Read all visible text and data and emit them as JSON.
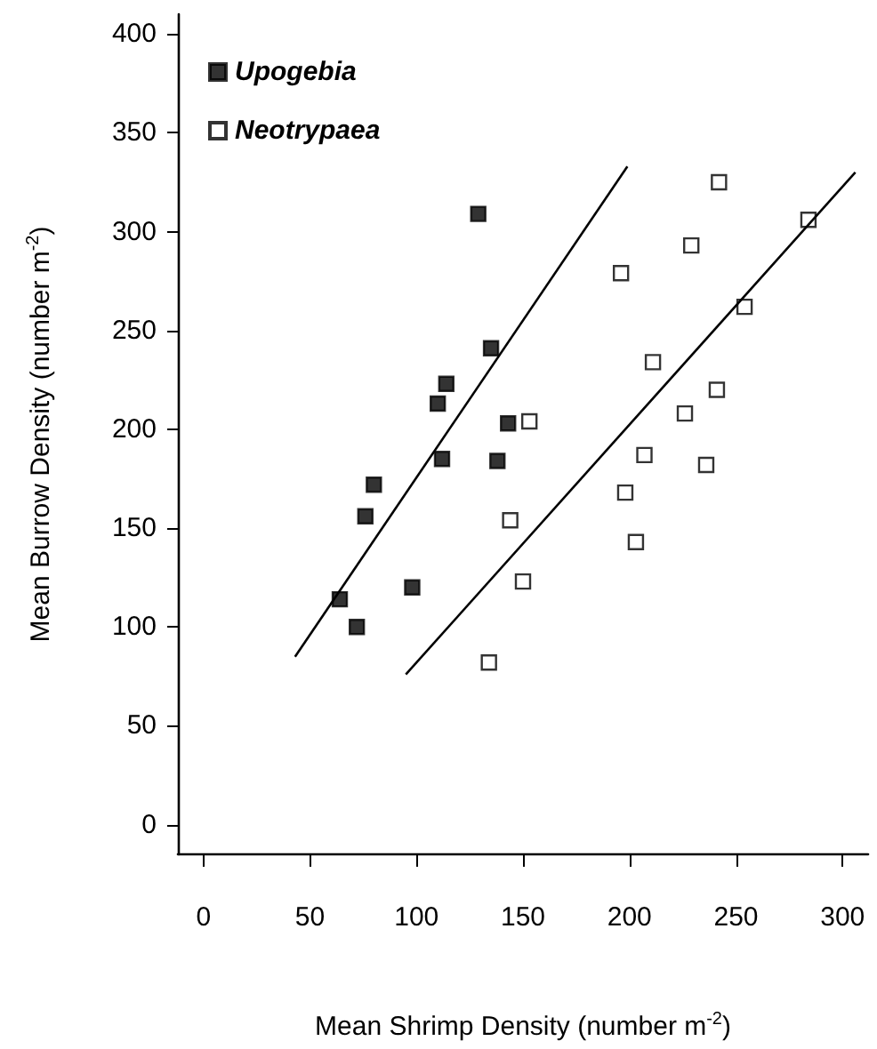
{
  "chart_data": {
    "type": "scatter",
    "xlabel": "Mean Shrimp Density (number m$^{-2}$)",
    "ylabel": "Mean Burrow Density (number m$^{-2}$)",
    "xlim": [
      -12,
      312
    ],
    "ylim": [
      -15,
      410
    ],
    "xticks": [
      0,
      50,
      100,
      150,
      200,
      250,
      300
    ],
    "yticks": [
      0,
      50,
      100,
      150,
      200,
      250,
      300,
      350,
      400
    ],
    "grid": false,
    "legend": "top left",
    "marker": "square",
    "series": [
      {
        "name": "Upogebia",
        "color": "#000000",
        "x": [
          129,
          135,
          114,
          110,
          143,
          112,
          138,
          80,
          76,
          64,
          72,
          98
        ],
        "values": [
          309,
          241,
          223,
          213,
          203,
          185,
          184,
          172,
          156,
          114,
          100,
          120
        ]
      },
      {
        "name": "Neotrypaea",
        "color": "#ffffff",
        "x": [
          242,
          284,
          229,
          196,
          254,
          211,
          241,
          226,
          153,
          207,
          236,
          198,
          144,
          203,
          150,
          134
        ],
        "values": [
          325,
          306,
          293,
          279,
          262,
          234,
          220,
          208,
          204,
          187,
          182,
          168,
          154,
          143,
          123,
          82
        ]
      },
      {
        "type": "line",
        "color": "#000000",
        "marker": "none",
        "x": [
          43,
          199
        ],
        "values": [
          85,
          333
        ]
      },
      {
        "type": "line",
        "color": "#000000",
        "marker": "none",
        "x": [
          95,
          306
        ],
        "values": [
          76,
          330
        ]
      }
    ]
  }
}
